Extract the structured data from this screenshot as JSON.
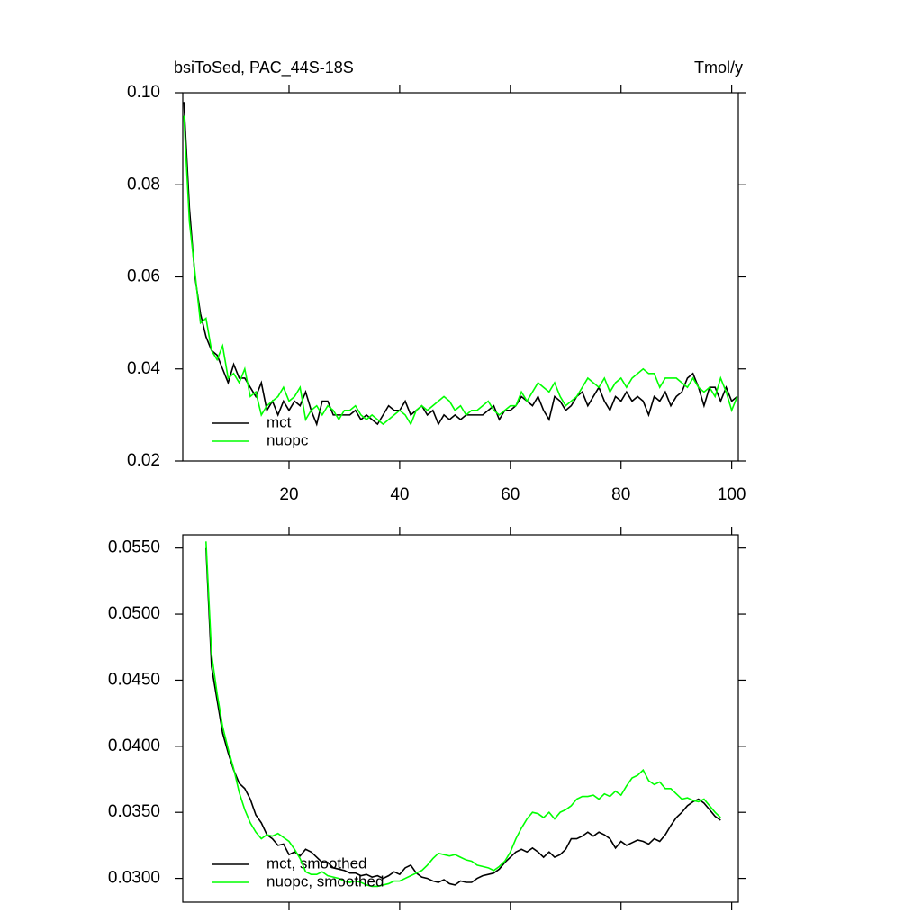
{
  "chart_data": [
    {
      "type": "line",
      "title": "bsiToSed, PAC_44S-18S",
      "units": "Tmol/y",
      "legend": "lower left",
      "x": [
        1,
        2,
        3,
        4,
        5,
        6,
        7,
        8,
        9,
        10,
        11,
        12,
        13,
        14,
        15,
        16,
        17,
        18,
        19,
        20,
        21,
        22,
        23,
        24,
        25,
        26,
        27,
        28,
        29,
        30,
        31,
        32,
        33,
        34,
        35,
        36,
        37,
        38,
        39,
        40,
        41,
        42,
        43,
        44,
        45,
        46,
        47,
        48,
        49,
        50,
        51,
        52,
        53,
        54,
        55,
        56,
        57,
        58,
        59,
        60,
        61,
        62,
        63,
        64,
        65,
        66,
        67,
        68,
        69,
        70,
        71,
        72,
        73,
        74,
        75,
        76,
        77,
        78,
        79,
        80,
        81,
        82,
        83,
        84,
        85,
        86,
        87,
        88,
        89,
        90,
        91,
        92,
        93,
        94,
        95,
        96,
        97,
        98,
        99,
        100,
        101
      ],
      "xlim": [
        0.8,
        101.2
      ],
      "xticks": [
        20,
        40,
        60,
        80,
        100
      ],
      "ylim": [
        0.02,
        0.1
      ],
      "yticks": [
        {
          "value": 0.02,
          "label": "0.02"
        },
        {
          "value": 0.04,
          "label": "0.04"
        },
        {
          "value": 0.06,
          "label": "0.06"
        },
        {
          "value": 0.08,
          "label": "0.08"
        },
        {
          "value": 0.1,
          "label": "0.10"
        }
      ],
      "series": [
        {
          "name": "mct",
          "color": "#000000",
          "values": [
            0.098,
            0.075,
            0.06,
            0.052,
            0.047,
            0.044,
            0.043,
            0.04,
            0.037,
            0.041,
            0.038,
            0.038,
            0.036,
            0.034,
            0.037,
            0.031,
            0.033,
            0.03,
            0.033,
            0.031,
            0.033,
            0.032,
            0.035,
            0.031,
            0.028,
            0.033,
            0.033,
            0.03,
            0.03,
            0.03,
            0.03,
            0.031,
            0.029,
            0.03,
            0.029,
            0.028,
            0.03,
            0.032,
            0.031,
            0.031,
            0.033,
            0.03,
            0.031,
            0.032,
            0.03,
            0.031,
            0.028,
            0.03,
            0.029,
            0.03,
            0.029,
            0.03,
            0.03,
            0.03,
            0.03,
            0.031,
            0.032,
            0.029,
            0.031,
            0.031,
            0.032,
            0.034,
            0.033,
            0.032,
            0.034,
            0.031,
            0.029,
            0.034,
            0.033,
            0.031,
            0.032,
            0.034,
            0.035,
            0.032,
            0.034,
            0.036,
            0.033,
            0.031,
            0.034,
            0.033,
            0.035,
            0.033,
            0.034,
            0.033,
            0.03,
            0.034,
            0.033,
            0.035,
            0.032,
            0.034,
            0.035,
            0.038,
            0.039,
            0.036,
            0.032,
            0.036,
            0.036,
            0.033,
            0.036,
            0.033,
            0.034
          ]
        },
        {
          "name": "nuopc",
          "color": "#00ff00",
          "values": [
            0.095,
            0.072,
            0.061,
            0.05,
            0.051,
            0.044,
            0.042,
            0.045,
            0.038,
            0.039,
            0.037,
            0.04,
            0.034,
            0.035,
            0.03,
            0.032,
            0.033,
            0.034,
            0.036,
            0.033,
            0.034,
            0.036,
            0.029,
            0.031,
            0.032,
            0.03,
            0.032,
            0.031,
            0.029,
            0.031,
            0.031,
            0.032,
            0.03,
            0.029,
            0.03,
            0.029,
            0.028,
            0.029,
            0.03,
            0.031,
            0.03,
            0.028,
            0.031,
            0.032,
            0.031,
            0.032,
            0.033,
            0.034,
            0.033,
            0.031,
            0.032,
            0.03,
            0.031,
            0.031,
            0.032,
            0.033,
            0.031,
            0.03,
            0.031,
            0.032,
            0.032,
            0.035,
            0.033,
            0.035,
            0.037,
            0.036,
            0.035,
            0.037,
            0.034,
            0.032,
            0.033,
            0.034,
            0.036,
            0.038,
            0.037,
            0.036,
            0.038,
            0.035,
            0.037,
            0.038,
            0.036,
            0.038,
            0.039,
            0.04,
            0.039,
            0.039,
            0.036,
            0.038,
            0.038,
            0.038,
            0.037,
            0.036,
            0.038,
            0.036,
            0.035,
            0.036,
            0.034,
            0.038,
            0.035,
            0.031,
            0.034
          ]
        }
      ]
    },
    {
      "type": "line",
      "legend": "lower left",
      "xtick_labels": false,
      "x": [
        5,
        6,
        7,
        8,
        9,
        10,
        11,
        12,
        13,
        14,
        15,
        16,
        17,
        18,
        19,
        20,
        21,
        22,
        23,
        24,
        25,
        26,
        27,
        28,
        29,
        30,
        31,
        32,
        33,
        34,
        35,
        36,
        37,
        38,
        39,
        40,
        41,
        42,
        43,
        44,
        45,
        46,
        47,
        48,
        49,
        50,
        51,
        52,
        53,
        54,
        55,
        56,
        57,
        58,
        59,
        60,
        61,
        62,
        63,
        64,
        65,
        66,
        67,
        68,
        69,
        70,
        71,
        72,
        73,
        74,
        75,
        76,
        77,
        78,
        79,
        80,
        81,
        82,
        83,
        84,
        85,
        86,
        87,
        88,
        89,
        90,
        91,
        92,
        93,
        94,
        95,
        96,
        97,
        98
      ],
      "xlim": [
        0.8,
        101.2
      ],
      "xticks": [
        20,
        40,
        60,
        80,
        100
      ],
      "ylim": [
        0.0282,
        0.056
      ],
      "yticks": [
        {
          "value": 0.03,
          "label": "0.0300"
        },
        {
          "value": 0.035,
          "label": "0.0350"
        },
        {
          "value": 0.04,
          "label": "0.0400"
        },
        {
          "value": 0.045,
          "label": "0.0450"
        },
        {
          "value": 0.05,
          "label": "0.0500"
        },
        {
          "value": 0.055,
          "label": "0.0550"
        }
      ],
      "series": [
        {
          "name": "mct, smoothed",
          "color": "#000000",
          "values": [
            0.055,
            0.046,
            0.0435,
            0.041,
            0.0395,
            0.0382,
            0.0372,
            0.0368,
            0.036,
            0.0348,
            0.0342,
            0.0333,
            0.033,
            0.0325,
            0.0326,
            0.0318,
            0.032,
            0.0317,
            0.0322,
            0.032,
            0.0316,
            0.0312,
            0.0312,
            0.0308,
            0.0307,
            0.0306,
            0.0304,
            0.0304,
            0.0302,
            0.0303,
            0.0301,
            0.0302,
            0.03,
            0.0302,
            0.0305,
            0.0303,
            0.0308,
            0.031,
            0.0304,
            0.0301,
            0.03,
            0.0298,
            0.0297,
            0.0299,
            0.0296,
            0.0295,
            0.0298,
            0.0297,
            0.0297,
            0.03,
            0.0302,
            0.0303,
            0.0304,
            0.0307,
            0.0312,
            0.0316,
            0.032,
            0.0322,
            0.032,
            0.0323,
            0.032,
            0.0316,
            0.032,
            0.0316,
            0.0318,
            0.0322,
            0.033,
            0.033,
            0.0332,
            0.0335,
            0.0332,
            0.0335,
            0.0333,
            0.033,
            0.0323,
            0.0328,
            0.0325,
            0.0327,
            0.0329,
            0.0328,
            0.0326,
            0.033,
            0.0328,
            0.0333,
            0.034,
            0.0346,
            0.035,
            0.0355,
            0.0358,
            0.036,
            0.0357,
            0.0352,
            0.0347,
            0.0344
          ]
        },
        {
          "name": "nuopc, smoothed",
          "color": "#00ff00",
          "values": [
            0.0555,
            0.047,
            0.044,
            0.0415,
            0.0398,
            0.0383,
            0.0365,
            0.0352,
            0.0342,
            0.0335,
            0.033,
            0.0333,
            0.0332,
            0.0334,
            0.0331,
            0.0328,
            0.0322,
            0.0315,
            0.0305,
            0.0303,
            0.0303,
            0.0305,
            0.0302,
            0.0301,
            0.03,
            0.0298,
            0.0297,
            0.0298,
            0.0297,
            0.0295,
            0.0294,
            0.0294,
            0.0295,
            0.0296,
            0.0298,
            0.0298,
            0.03,
            0.0302,
            0.0304,
            0.0306,
            0.031,
            0.0315,
            0.0319,
            0.0318,
            0.0317,
            0.0318,
            0.0316,
            0.0314,
            0.0313,
            0.031,
            0.0309,
            0.0308,
            0.0306,
            0.0309,
            0.0313,
            0.032,
            0.033,
            0.0338,
            0.0345,
            0.035,
            0.0349,
            0.0346,
            0.035,
            0.0345,
            0.035,
            0.0352,
            0.0355,
            0.036,
            0.0362,
            0.0362,
            0.0363,
            0.036,
            0.0364,
            0.0362,
            0.0366,
            0.0363,
            0.037,
            0.0376,
            0.0378,
            0.0382,
            0.0374,
            0.0371,
            0.0373,
            0.0368,
            0.0368,
            0.0364,
            0.036,
            0.0361,
            0.0359,
            0.0358,
            0.036,
            0.0355,
            0.035,
            0.0346
          ]
        }
      ]
    }
  ]
}
